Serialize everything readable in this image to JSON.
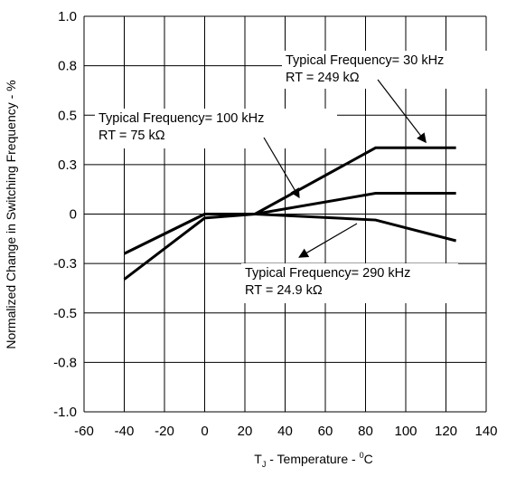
{
  "chart_data": {
    "type": "line",
    "xlabel_main": "T",
    "xlabel_sub": "J",
    "xlabel_rest": " - Temperature - ",
    "xlabel_sup": "0",
    "xlabel_unit": "C",
    "ylabel": "Normalized Change in Switching Frequency - %",
    "xlim": [
      -60,
      140
    ],
    "ylim": [
      -1.0,
      1.0
    ],
    "x_ticks": [
      -60,
      -40,
      -20,
      0,
      20,
      40,
      60,
      80,
      100,
      120,
      140
    ],
    "y_ticks": [
      1.0,
      0.75,
      0.5,
      0.25,
      0,
      -0.25,
      -0.5,
      -0.75,
      -1.0
    ],
    "x_tick_labels": [
      "-60",
      "-40",
      "-20",
      "0",
      "20",
      "40",
      "60",
      "80",
      "100",
      "120",
      "140"
    ],
    "y_tick_labels": [
      "1.0",
      "0.8",
      "0.5",
      "0.3",
      "0",
      "-0.3",
      "-0.5",
      "-0.8",
      "-1.0"
    ],
    "grid": true,
    "series": [
      {
        "id": "f30k",
        "x": [
          -40,
          0,
          25,
          85,
          125
        ],
        "y": [
          -0.33,
          -0.02,
          0.0,
          0.335,
          0.335
        ]
      },
      {
        "id": "f100k",
        "x": [
          -40,
          0,
          25,
          85,
          125
        ],
        "y": [
          -0.2,
          0.0,
          0.0,
          0.105,
          0.105
        ]
      },
      {
        "id": "f290k",
        "x": [
          -40,
          0,
          25,
          85,
          125
        ],
        "y": [
          -0.2,
          0.0,
          0.0,
          -0.03,
          -0.135
        ]
      }
    ],
    "annotations": [
      {
        "line1": "Typical Frequency= 30 kHz",
        "line2": "RT = 249 kΩ"
      },
      {
        "line1": "Typical Frequency= 100 kHz",
        "line2": "RT = 75 kΩ"
      },
      {
        "line1": "Typical Frequency= 290 kHz",
        "line2": "RT = 24.9 kΩ"
      }
    ]
  }
}
